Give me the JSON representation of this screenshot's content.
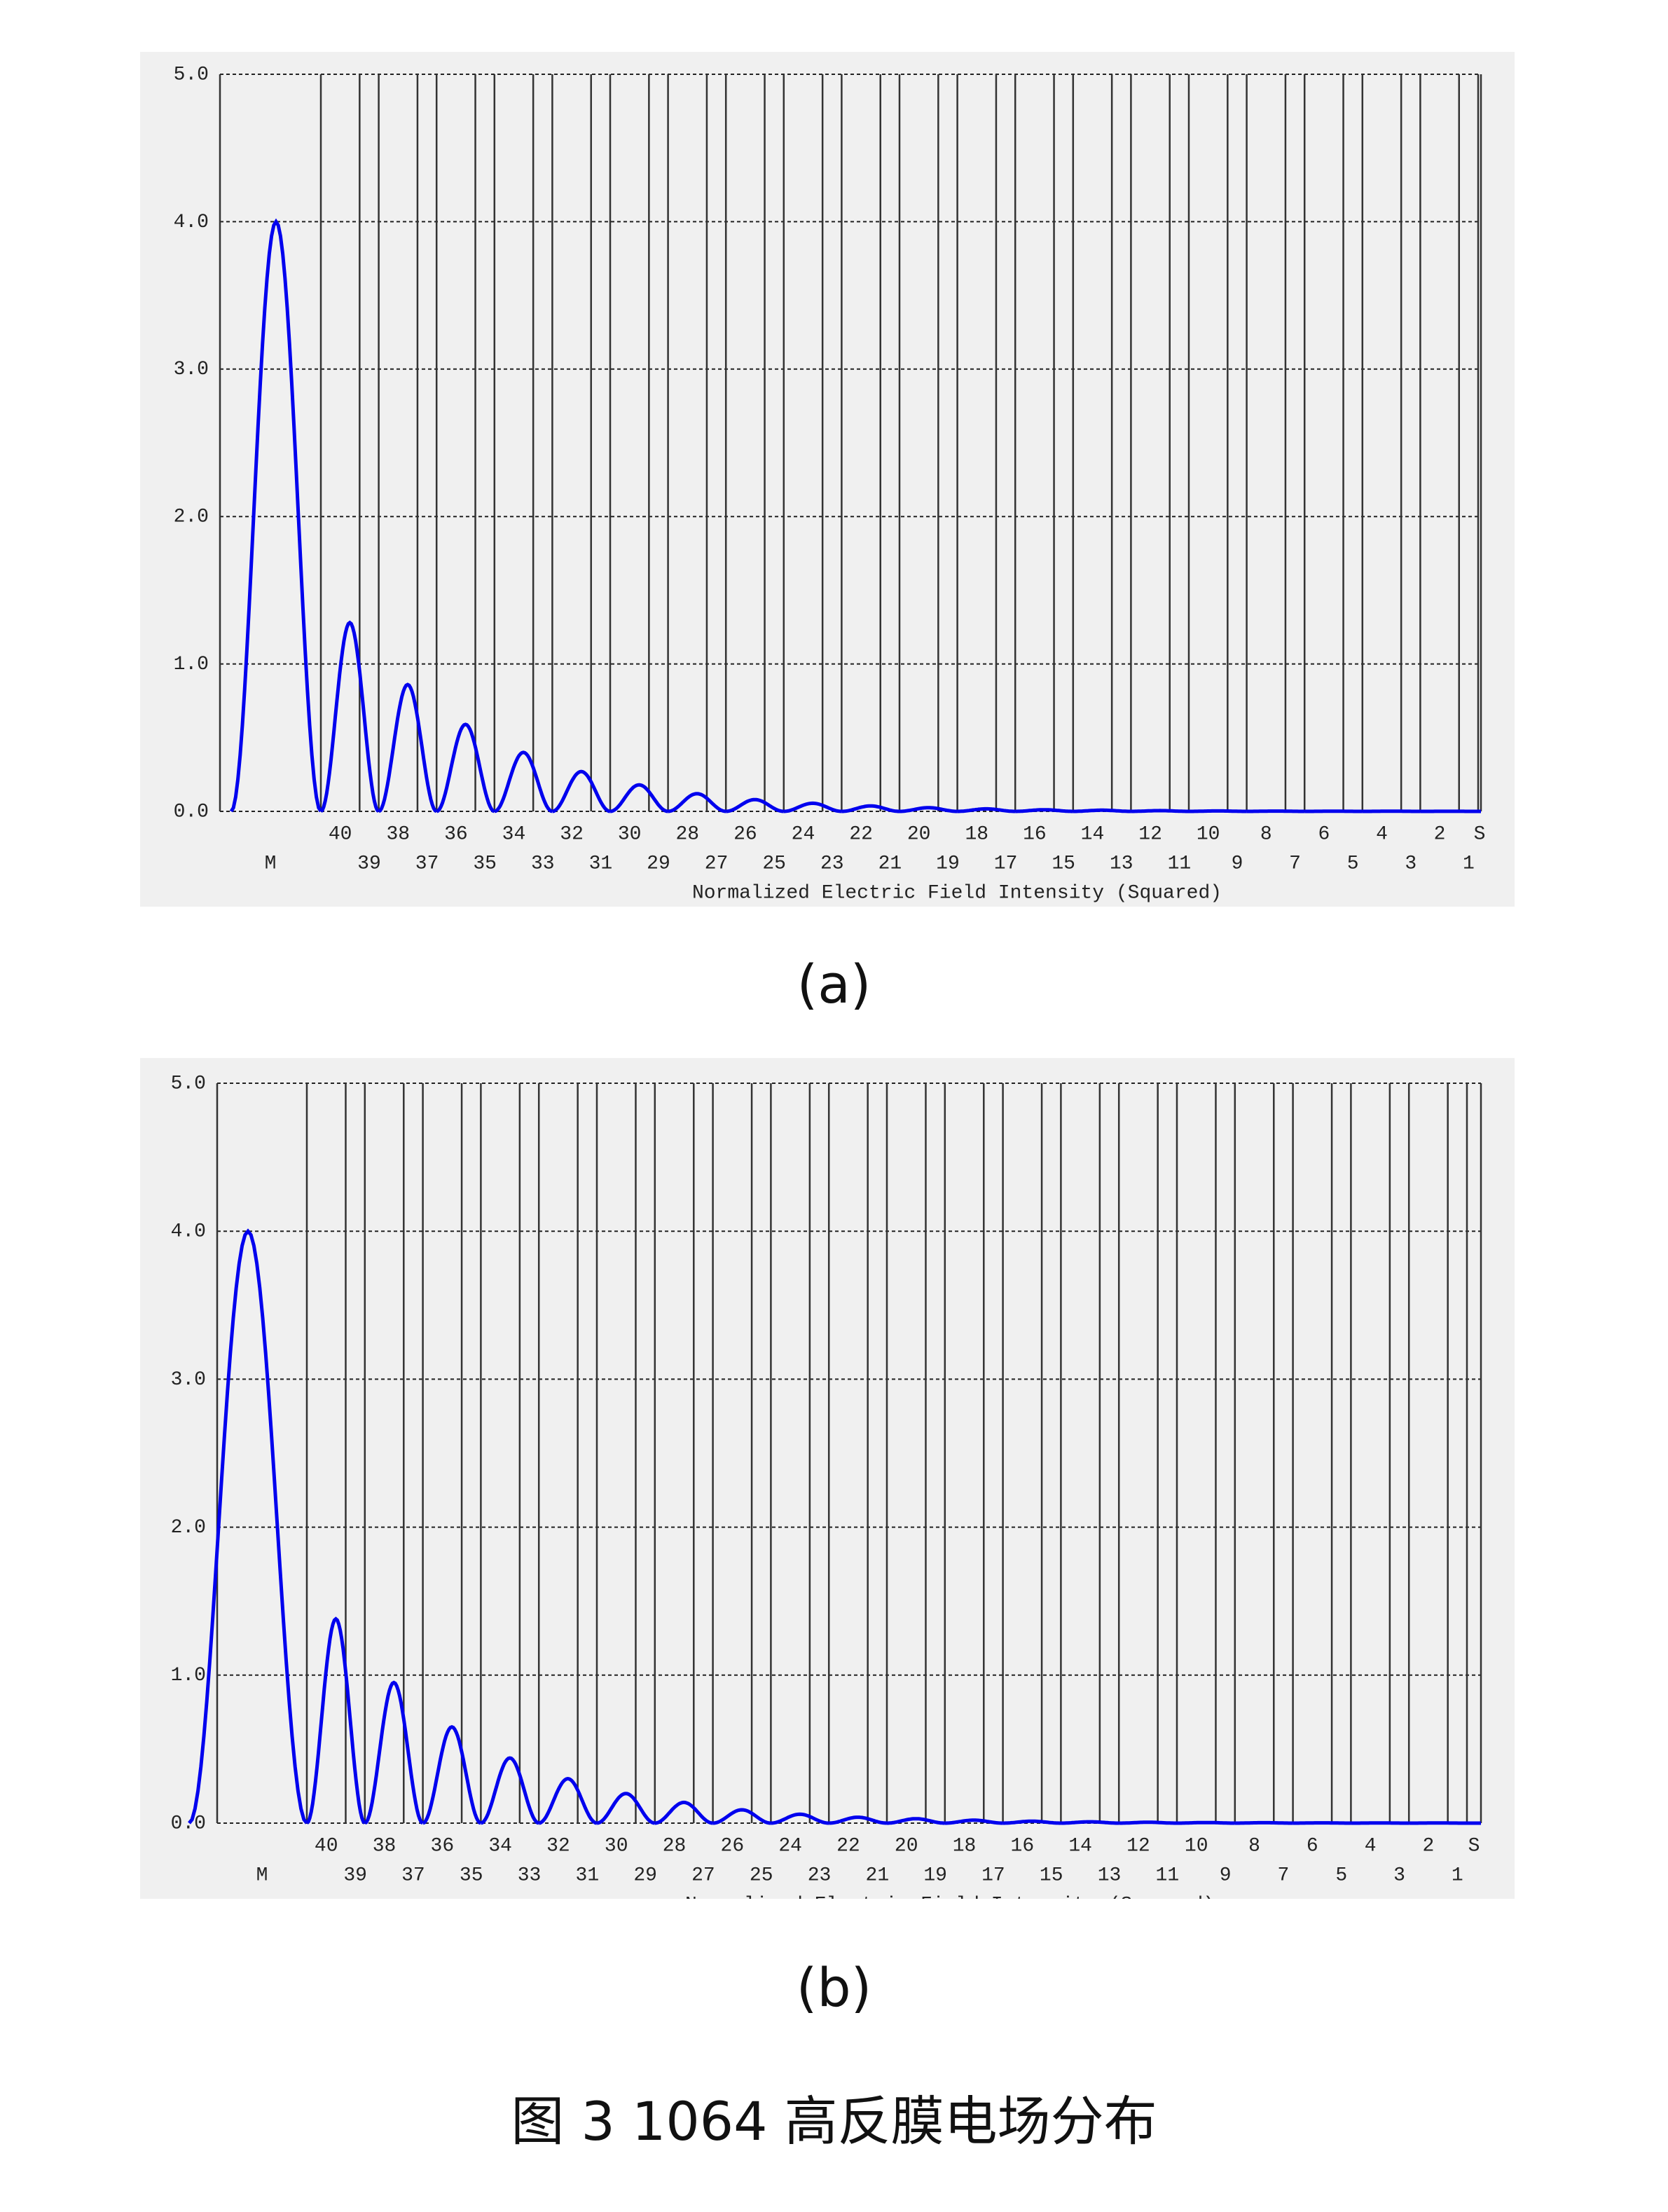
{
  "chart_data": [
    {
      "type": "line",
      "label": "(a)",
      "x_label": "Normalized Electric Field Intensity (Squared)",
      "categories": [
        "M",
        "40",
        "39",
        "38",
        "37",
        "36",
        "35",
        "34",
        "33",
        "32",
        "31",
        "30",
        "29",
        "28",
        "27",
        "26",
        "25",
        "24",
        "23",
        "22",
        "21",
        "20",
        "19",
        "18",
        "17",
        "16",
        "15",
        "14",
        "13",
        "12",
        "11",
        "10",
        "9",
        "8",
        "7",
        "6",
        "5",
        "4",
        "3",
        "2",
        "1",
        "S"
      ],
      "peak_values": [
        4.0,
        1.28,
        0.86,
        0.59,
        0.4,
        0.27,
        0.18,
        0.12,
        0.08,
        0.055,
        0.037,
        0.025,
        0.017,
        0.011,
        0.008,
        0.005,
        0.003,
        0.002,
        0.001,
        0.001,
        0.0005
      ],
      "color": "#0000ee",
      "ylim": [
        0,
        5
      ],
      "yticks": [
        {
          "value": 0,
          "label": "0.0"
        },
        {
          "value": 1,
          "label": "1.0"
        },
        {
          "value": 2,
          "label": "2.0"
        },
        {
          "value": 3,
          "label": "3.0"
        },
        {
          "value": 4,
          "label": "4.0"
        },
        {
          "value": 5,
          "label": "5.0"
        }
      ],
      "grid": true
    },
    {
      "type": "line",
      "label": "(b)",
      "x_label": "Normalized Electric Field Intensity (Squared)",
      "categories": [
        "M",
        "40",
        "39",
        "38",
        "37",
        "36",
        "35",
        "34",
        "33",
        "32",
        "31",
        "30",
        "29",
        "28",
        "27",
        "26",
        "25",
        "24",
        "23",
        "22",
        "21",
        "20",
        "19",
        "18",
        "17",
        "16",
        "15",
        "14",
        "13",
        "12",
        "11",
        "10",
        "9",
        "8",
        "7",
        "6",
        "5",
        "4",
        "3",
        "2",
        "1",
        "S"
      ],
      "peak_values": [
        4.0,
        1.38,
        0.95,
        0.65,
        0.44,
        0.3,
        0.2,
        0.14,
        0.09,
        0.06,
        0.04,
        0.03,
        0.02,
        0.013,
        0.009,
        0.006,
        0.004,
        0.003,
        0.002,
        0.001,
        0.001
      ],
      "color": "#0000ee",
      "ylim": [
        0,
        5
      ],
      "yticks": [
        {
          "value": 0,
          "label": "0.0"
        },
        {
          "value": 1,
          "label": "1.0"
        },
        {
          "value": 2,
          "label": "2.0"
        },
        {
          "value": 3,
          "label": "3.0"
        },
        {
          "value": 4,
          "label": "4.0"
        },
        {
          "value": 5,
          "label": "5.0"
        }
      ],
      "grid": true
    }
  ],
  "figure_caption": "图 3 1064 高反膜电场分布"
}
